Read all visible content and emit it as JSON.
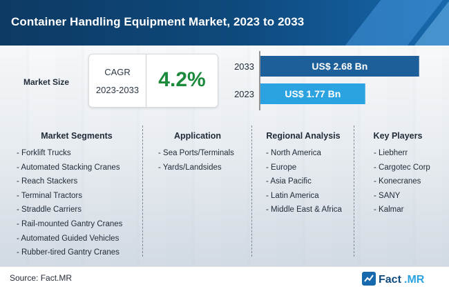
{
  "header": {
    "title": "Container Handling Equipment Market, 2023 to 2033"
  },
  "market_size": {
    "label": "Market Size",
    "cagr_label": "CAGR",
    "cagr_period": "2023-2033",
    "cagr_value": "4.2%"
  },
  "chart_data": {
    "type": "bar",
    "orientation": "horizontal",
    "categories": [
      "2033",
      "2023"
    ],
    "values": [
      2.68,
      1.77
    ],
    "value_labels": [
      "US$ 2.68 Bn",
      "US$ 1.77 Bn"
    ],
    "unit": "US$ Bn",
    "colors": [
      "#1d5f99",
      "#2ba3e0"
    ],
    "xlim": [
      0,
      2.8
    ],
    "grid": false,
    "legend": "none"
  },
  "columns": [
    {
      "heading": "Market Segments",
      "items": [
        "- Forklift Trucks",
        "- Automated Stacking Cranes",
        "- Reach Stackers",
        "- Terminal Tractors",
        "- Straddle Carriers",
        "- Rail-mounted Gantry Cranes",
        "- Automated Guided Vehicles",
        "- Rubber-tired Gantry Cranes"
      ]
    },
    {
      "heading": "Application",
      "items": [
        "- Sea Ports/Terminals",
        "- Yards/Landsides"
      ]
    },
    {
      "heading": "Regional Analysis",
      "items": [
        "- North America",
        "- Europe",
        "- Asia Pacific",
        "- Latin America",
        "- Middle East & Africa"
      ]
    },
    {
      "heading": "Key Players",
      "items": [
        "- Liebherr",
        "- Cargotec Corp",
        "- Konecranes",
        "- SANY",
        "- Kalmar"
      ]
    }
  ],
  "footer": {
    "source": "Source: Fact.MR",
    "logo_text_left": "Fact",
    "logo_text_right": ".MR"
  },
  "colors": {
    "header": "#0e4a7e",
    "cagr_value": "#1c8a3c",
    "bar_2033": "#1d5f99",
    "bar_2023": "#2ba3e0"
  }
}
